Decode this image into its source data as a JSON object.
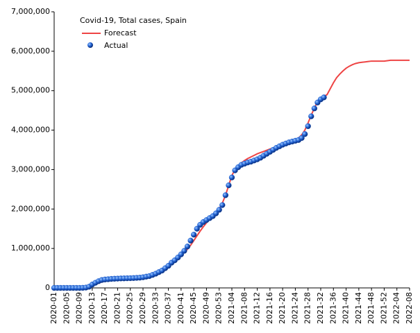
{
  "chart_data": {
    "type": "line",
    "title": "Covid-19, Total cases, Spain",
    "categories": [
      "2020-01",
      null,
      null,
      null,
      "2020-05",
      null,
      null,
      null,
      "2020-09",
      null,
      null,
      null,
      "2020-13",
      null,
      null,
      null,
      "2020-17",
      null,
      null,
      null,
      "2020-21",
      null,
      null,
      null,
      "2020-25",
      null,
      null,
      null,
      "2020-29",
      null,
      null,
      null,
      "2020-33",
      null,
      null,
      null,
      "2020-37",
      null,
      null,
      null,
      "2020-41",
      null,
      null,
      null,
      "2020-45",
      null,
      null,
      null,
      "2020-49",
      null,
      null,
      null,
      "2020-53",
      null,
      null,
      null,
      "2021-04",
      null,
      null,
      null,
      "2021-08",
      null,
      null,
      null,
      "2021-12",
      null,
      null,
      null,
      "2021-16",
      null,
      null,
      null,
      "2021-20",
      null,
      null,
      null,
      "2021-24",
      null,
      null,
      null,
      "2021-28",
      null,
      null,
      null,
      "2021-32",
      null,
      null,
      null,
      "2021-36",
      null,
      null,
      null,
      "2021-40",
      null,
      null,
      null,
      "2021-44",
      null,
      null,
      null,
      "2021-48",
      null,
      null,
      null,
      "2021-52",
      null,
      null,
      null,
      "2022-04",
      null,
      null,
      null,
      "2022-08"
    ],
    "series": [
      {
        "name": "Forecast",
        "type": "line",
        "color": "#ee4444",
        "values": [
          0,
          0,
          0,
          0,
          0,
          0,
          0,
          0,
          0,
          0,
          5000,
          20000,
          50000,
          90000,
          120000,
          150000,
          170000,
          185000,
          200000,
          210000,
          220000,
          228000,
          235000,
          240000,
          245000,
          250000,
          258000,
          268000,
          280000,
          300000,
          320000,
          350000,
          380000,
          420000,
          460000,
          510000,
          570000,
          630000,
          690000,
          760000,
          830000,
          900000,
          980000,
          1080000,
          1200000,
          1320000,
          1440000,
          1550000,
          1650000,
          1740000,
          1820000,
          1900000,
          2000000,
          2150000,
          2350000,
          2600000,
          2850000,
          3000000,
          3100000,
          3170000,
          3230000,
          3280000,
          3320000,
          3360000,
          3400000,
          3430000,
          3460000,
          3490000,
          3520000,
          3550000,
          3580000,
          3610000,
          3640000,
          3670000,
          3700000,
          3730000,
          3760000,
          3800000,
          3880000,
          4000000,
          4180000,
          4380000,
          4560000,
          4720000,
          4800000,
          4850000,
          4900000,
          5050000,
          5200000,
          5330000,
          5420000,
          5500000,
          5570000,
          5620000,
          5660000,
          5690000,
          5710000,
          5720000,
          5730000,
          5740000,
          5750000,
          5750000,
          5750000,
          5750000,
          5750000,
          5760000,
          5770000,
          5770000,
          5770000,
          5770000,
          5770000,
          5770000,
          5770000
        ]
      },
      {
        "name": "Actual",
        "type": "scatter",
        "color": "#1f5fd0",
        "values": [
          0,
          0,
          0,
          0,
          0,
          0,
          0,
          0,
          0,
          2000,
          8000,
          30000,
          85000,
          130000,
          170000,
          200000,
          213000,
          220000,
          228000,
          232000,
          236000,
          240000,
          242000,
          245000,
          247000,
          250000,
          255000,
          260000,
          270000,
          285000,
          300000,
          330000,
          360000,
          400000,
          440000,
          500000,
          560000,
          640000,
          700000,
          770000,
          850000,
          940000,
          1050000,
          1200000,
          1350000,
          1500000,
          1600000,
          1670000,
          1720000,
          1770000,
          1820000,
          1890000,
          1980000,
          2100000,
          2350000,
          2600000,
          2800000,
          2980000,
          3060000,
          3120000,
          3150000,
          3180000,
          3200000,
          3230000,
          3260000,
          3300000,
          3350000,
          3400000,
          3450000,
          3500000,
          3550000,
          3590000,
          3630000,
          3660000,
          3690000,
          3710000,
          3730000,
          3750000,
          3800000,
          3900000,
          4100000,
          4350000,
          4550000,
          4700000,
          4780000,
          4830000,
          null,
          null,
          null,
          null,
          null,
          null,
          null,
          null,
          null,
          null,
          null,
          null,
          null,
          null,
          null,
          null,
          null,
          null,
          null,
          null,
          null,
          null,
          null,
          null,
          null,
          null,
          null
        ]
      }
    ],
    "ylim": [
      0,
      7000000
    ],
    "yticks": [
      0,
      {
        "value": 1000000,
        "label": "1,000,000"
      },
      {
        "value": 2000000,
        "label": "2,000,000"
      },
      {
        "value": 3000000,
        "label": "3,000,000"
      },
      {
        "value": 4000000,
        "label": "4,000,000"
      },
      {
        "value": 5000000,
        "label": "5,000,000"
      },
      {
        "value": 6000000,
        "label": "6,000,000"
      },
      {
        "value": 7000000,
        "label": "7,000,000"
      }
    ],
    "grid": false,
    "legend": "upper left"
  }
}
